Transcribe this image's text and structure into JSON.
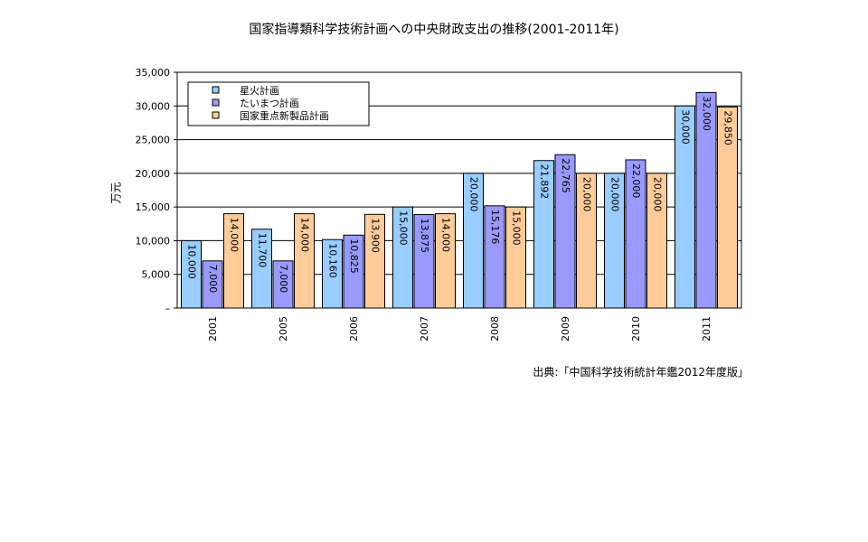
{
  "chart_data": {
    "type": "bar",
    "title": "国家指導類科学技術計画への中央財政支出の推移(2001-2011年)",
    "ylabel": "万元",
    "xlabel": "",
    "ylim": [
      0,
      35000
    ],
    "yticks": [
      0,
      5000,
      10000,
      15000,
      20000,
      25000,
      30000,
      35000
    ],
    "ytick_labels": [
      "–",
      "5,000",
      "10,000",
      "15,000",
      "20,000",
      "25,000",
      "30,000",
      "35,000"
    ],
    "grid": true,
    "legend_position": "top-left",
    "categories": [
      "2001",
      "2005",
      "2006",
      "2007",
      "2008",
      "2009",
      "2010",
      "2011"
    ],
    "series": [
      {
        "name": "星火計画",
        "color": "#99ccff",
        "values": [
          10000,
          11700,
          10160,
          15000,
          20000,
          21892,
          20000,
          30000
        ],
        "labels": [
          "10,000",
          "11,700",
          "10,160",
          "15,000",
          "20,000",
          "21,892",
          "20,000",
          "30,000"
        ]
      },
      {
        "name": "たいまつ計画",
        "color": "#9999ff",
        "values": [
          7000,
          7000,
          10825,
          13875,
          15176,
          22765,
          22000,
          32000
        ],
        "labels": [
          "7,000",
          "7,000",
          "10,825",
          "13,875",
          "15,176",
          "22,765",
          "22,000",
          "32,000"
        ]
      },
      {
        "name": "国家重点新製品計画",
        "color": "#ffcc99",
        "values": [
          14000,
          14000,
          13900,
          14000,
          15000,
          20000,
          20000,
          29850
        ],
        "labels": [
          "14,000",
          "14,000",
          "13,900",
          "14,000",
          "15,000",
          "20,000",
          "20,000",
          "29,850"
        ]
      }
    ]
  },
  "source": "出典:「中国科学技術統計年鑑2012年度版」"
}
